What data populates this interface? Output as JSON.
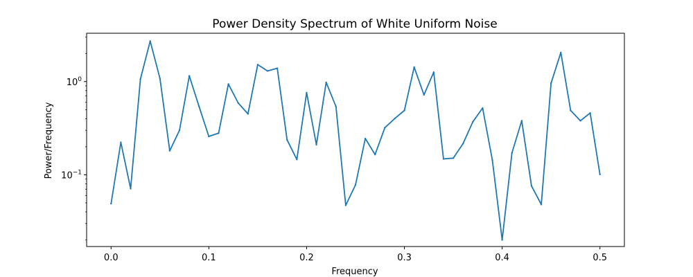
{
  "chart_data": {
    "type": "line",
    "title": "Power Density Spectrum of White Uniform Noise",
    "xlabel": "Frequency",
    "ylabel": "Power/Frequency",
    "yscale": "log",
    "xlim": [
      -0.025,
      0.525
    ],
    "ylim": [
      0.017,
      3.3
    ],
    "grid": false,
    "x_ticks": [
      0.0,
      0.1,
      0.2,
      0.3,
      0.4,
      0.5
    ],
    "x_tick_labels": [
      "0.0",
      "0.1",
      "0.2",
      "0.3",
      "0.4",
      "0.5"
    ],
    "y_major_ticks": [
      0.1,
      1.0
    ],
    "y_tick_labels": [
      {
        "value": 0.1,
        "base": "10",
        "exp": "−1"
      },
      {
        "value": 1.0,
        "base": "10",
        "exp": "0"
      }
    ],
    "y_minor_ticks": [
      0.02,
      0.03,
      0.04,
      0.05,
      0.06,
      0.07,
      0.08,
      0.09,
      0.2,
      0.3,
      0.4,
      0.5,
      0.6,
      0.7,
      0.8,
      0.9,
      2,
      3
    ],
    "line_color": "#1f77b4",
    "series": [
      {
        "x": [
          0.0,
          0.01,
          0.02,
          0.03,
          0.04,
          0.05,
          0.06,
          0.07,
          0.08,
          0.09,
          0.1,
          0.11,
          0.12,
          0.13,
          0.14,
          0.15,
          0.16,
          0.17,
          0.18,
          0.19,
          0.2,
          0.21,
          0.22,
          0.23,
          0.24,
          0.25,
          0.26,
          0.27,
          0.28,
          0.29,
          0.3,
          0.31,
          0.32,
          0.33,
          0.34,
          0.35,
          0.36,
          0.37,
          0.38,
          0.39,
          0.4,
          0.41,
          0.42,
          0.43,
          0.44,
          0.45,
          0.46,
          0.47,
          0.48,
          0.49,
          0.5
        ],
        "values": [
          0.049,
          0.223,
          0.071,
          1.06,
          2.72,
          1.08,
          0.181,
          0.301,
          1.15,
          0.54,
          0.258,
          0.28,
          0.94,
          0.59,
          0.45,
          1.52,
          1.3,
          1.39,
          0.237,
          0.146,
          0.76,
          0.21,
          0.98,
          0.54,
          0.047,
          0.078,
          0.245,
          0.165,
          0.32,
          0.4,
          0.49,
          1.43,
          0.72,
          1.26,
          0.148,
          0.151,
          0.216,
          0.37,
          0.52,
          0.143,
          0.02,
          0.172,
          0.38,
          0.076,
          0.048,
          0.96,
          2.05,
          0.49,
          0.38,
          0.46,
          0.101
        ]
      }
    ]
  }
}
